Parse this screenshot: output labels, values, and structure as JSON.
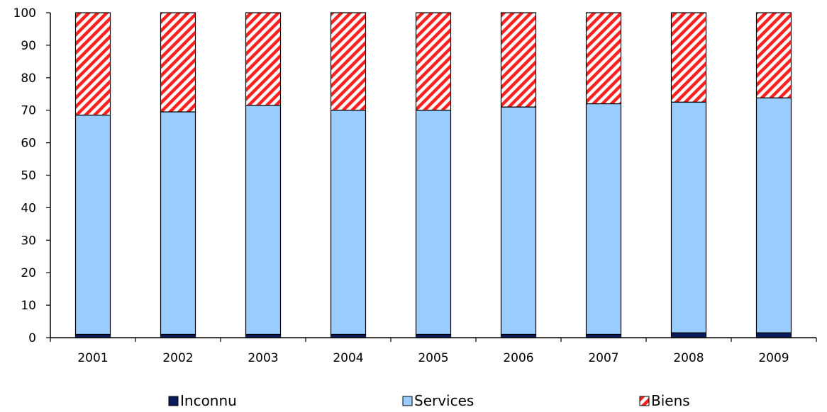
{
  "chart_data": {
    "type": "bar",
    "stacked": true,
    "categories": [
      "2001",
      "2002",
      "2003",
      "2004",
      "2005",
      "2006",
      "2007",
      "2008",
      "2009"
    ],
    "series": [
      {
        "name": "Inconnu",
        "values": [
          1,
          1,
          1,
          1,
          1,
          1,
          1,
          1.5,
          1.5
        ],
        "color": "#0a1a5c",
        "pattern": "solid"
      },
      {
        "name": "Services",
        "values": [
          67.5,
          68.5,
          70.5,
          69,
          69,
          70,
          71,
          71,
          72.3
        ],
        "color": "#99ccff",
        "pattern": "solid"
      },
      {
        "name": "Biens",
        "values": [
          31.5,
          30.5,
          28.5,
          30,
          30,
          29,
          28,
          27.5,
          26.2
        ],
        "color": "#ff2020",
        "pattern": "diagonal-stripes-red-white"
      }
    ],
    "ylim": [
      0,
      100
    ],
    "yticks": [
      "0",
      "10",
      "20",
      "30",
      "40",
      "50",
      "60",
      "70",
      "80",
      "90",
      "100"
    ],
    "grid": false,
    "legend_position": "bottom"
  }
}
